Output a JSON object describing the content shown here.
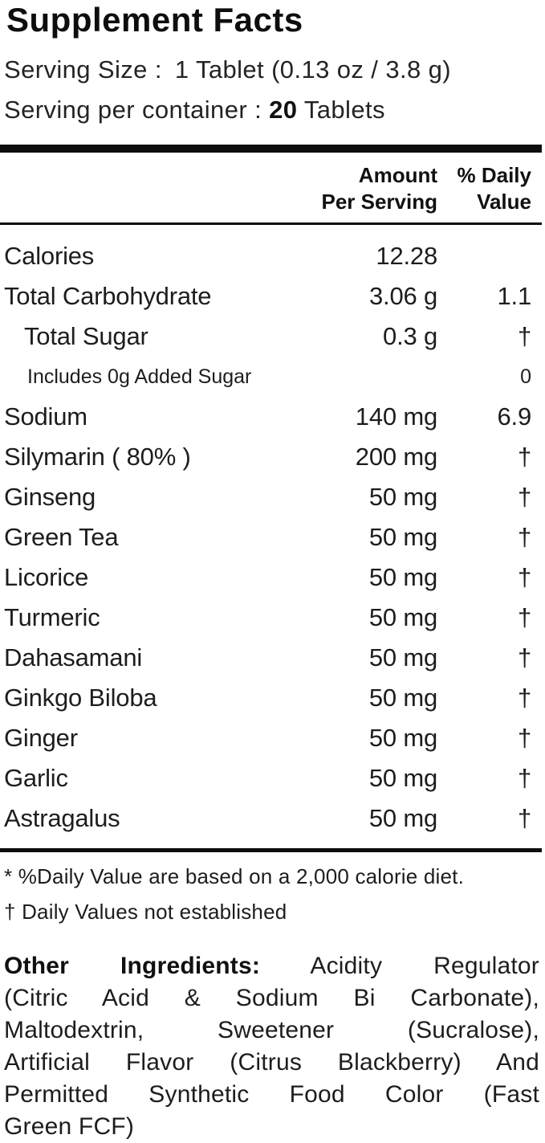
{
  "title": "Supplement Facts",
  "serving": {
    "size_label": "Serving Size :",
    "size_value": "1 Tablet (0.13 oz / 3.8 g)",
    "container_label": "Serving per container :",
    "container_count": "20",
    "container_unit": "Tablets"
  },
  "table_header": {
    "amount_line1": "Amount",
    "amount_line2": "Per Serving",
    "dv_line1": "% Daily",
    "dv_line2": "Value"
  },
  "rows": [
    {
      "name": "Calories",
      "amount": "12.28",
      "dv": "",
      "indent": 0,
      "small": false
    },
    {
      "name": "Total Carbohydrate",
      "amount": "3.06 g",
      "dv": "1.1",
      "indent": 0,
      "small": false
    },
    {
      "name": "Total Sugar",
      "amount": "0.3 g",
      "dv": "†",
      "indent": 1,
      "small": false
    },
    {
      "name": "Includes 0g Added Sugar",
      "amount": "",
      "dv": "0",
      "indent": 2,
      "small": true
    },
    {
      "name": "Sodium",
      "amount": "140 mg",
      "dv": "6.9",
      "indent": 0,
      "small": false
    },
    {
      "name": "Silymarin ( 80% )",
      "amount": "200 mg",
      "dv": "†",
      "indent": 0,
      "small": false
    },
    {
      "name": "Ginseng",
      "amount": "50 mg",
      "dv": "†",
      "indent": 0,
      "small": false
    },
    {
      "name": "Green Tea",
      "amount": "50 mg",
      "dv": "†",
      "indent": 0,
      "small": false
    },
    {
      "name": "Licorice",
      "amount": "50 mg",
      "dv": "†",
      "indent": 0,
      "small": false
    },
    {
      "name": "Turmeric",
      "amount": "50 mg",
      "dv": "†",
      "indent": 0,
      "small": false
    },
    {
      "name": "Dahasamani",
      "amount": "50 mg",
      "dv": "†",
      "indent": 0,
      "small": false
    },
    {
      "name": "Ginkgo Biloba",
      "amount": "50 mg",
      "dv": "†",
      "indent": 0,
      "small": false
    },
    {
      "name": "Ginger",
      "amount": "50 mg",
      "dv": "†",
      "indent": 0,
      "small": false
    },
    {
      "name": "Garlic",
      "amount": "50 mg",
      "dv": "†",
      "indent": 0,
      "small": false
    },
    {
      "name": "Astragalus",
      "amount": "50 mg",
      "dv": "†",
      "indent": 0,
      "small": false
    }
  ],
  "footnotes": {
    "dv_note": "* %Daily Value are based on a 2,000 calorie diet.",
    "dagger_note": "† Daily Values not established"
  },
  "other_ingredients": {
    "label": "Other Ingredients:",
    "lines": [
      "Acidity Regulator",
      "(Citric Acid & Sodium Bi Carbonate),",
      "Maltodextrin, Sweetener (Sucralose),",
      "Artificial Flavor (Citrus Blackberry) And",
      "Permitted Synthetic Food Color (Fast",
      "Green FCF)"
    ],
    "full_text": "Other Ingredients: Acidity Regulator (Citric Acid & Sodium Bi Carbonate), Maltodextrin, Sweetener (Sucralose), Artificial Flavor (Citrus Blackberry) And Permitted Synthetic Food Color (Fast Green FCF)"
  },
  "colors": {
    "text": "#1d1d1d",
    "rule": "#0d0d0d",
    "background": "#ffffff"
  }
}
